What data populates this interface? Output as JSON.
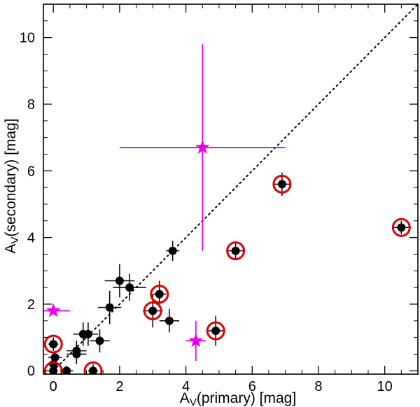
{
  "chart_data": {
    "type": "scatter",
    "title": "",
    "xlabel": {
      "prefix": "A",
      "sub": "V",
      "suffix": "(primary) [mag]"
    },
    "ylabel": {
      "prefix": "A",
      "sub": "V",
      "suffix": "(secondary) [mag]"
    },
    "xlim": [
      -0.3,
      11.0
    ],
    "ylim": [
      -0.1,
      11.0
    ],
    "xticks": [
      0,
      2,
      4,
      6,
      8,
      10
    ],
    "yticks": [
      0,
      2,
      4,
      6,
      8,
      10
    ],
    "xtick_labels": [
      "0",
      "2",
      "4",
      "6",
      "8",
      "10"
    ],
    "ytick_labels": [
      "0",
      "2",
      "4",
      "6",
      "8",
      "10"
    ],
    "reference_line": {
      "style": "dotted",
      "x": [
        0,
        11
      ],
      "y": [
        0,
        11
      ],
      "color": "#000000"
    },
    "series": [
      {
        "name": "black circles",
        "marker": "filled-circle",
        "color": "#000000",
        "points": [
          {
            "x": 0.0,
            "y": 0.0,
            "xerr": 0.1,
            "yerr": 0.15
          },
          {
            "x": 0.0,
            "y": 0.2,
            "xerr": 0.15,
            "yerr": 0.15
          },
          {
            "x": 0.05,
            "y": 0.4,
            "xerr": 0.2,
            "yerr": 0.2
          },
          {
            "x": 0.0,
            "y": 0.8,
            "xerr": 0.15,
            "yerr": 0.2
          },
          {
            "x": 0.4,
            "y": 0.0,
            "xerr": 0.2,
            "yerr": 0.15
          },
          {
            "x": 0.7,
            "y": 0.5,
            "xerr": 0.3,
            "yerr": 0.3
          },
          {
            "x": 0.7,
            "y": 0.6,
            "xerr": 0.3,
            "yerr": 0.3
          },
          {
            "x": 0.9,
            "y": 1.1,
            "xerr": 0.3,
            "yerr": 0.35
          },
          {
            "x": 1.05,
            "y": 1.1,
            "xerr": 0.3,
            "yerr": 0.35
          },
          {
            "x": 1.2,
            "y": 0.0,
            "xerr": 0.15,
            "yerr": 0.2
          },
          {
            "x": 1.4,
            "y": 0.9,
            "xerr": 0.3,
            "yerr": 0.35
          },
          {
            "x": 1.7,
            "y": 1.9,
            "xerr": 0.35,
            "yerr": 0.5
          },
          {
            "x": 2.0,
            "y": 2.7,
            "xerr": 0.45,
            "yerr": 0.5
          },
          {
            "x": 2.3,
            "y": 2.5,
            "xerr": 0.5,
            "yerr": 0.4
          },
          {
            "x": 3.0,
            "y": 1.8,
            "xerr": 0.3,
            "yerr": 0.5
          },
          {
            "x": 3.2,
            "y": 2.3,
            "xerr": 0.2,
            "yerr": 0.4
          },
          {
            "x": 3.5,
            "y": 1.5,
            "xerr": 0.3,
            "yerr": 0.35
          },
          {
            "x": 3.6,
            "y": 3.6,
            "xerr": 0.2,
            "yerr": 0.3
          },
          {
            "x": 4.9,
            "y": 1.2,
            "xerr": 0.25,
            "yerr": 0.45
          },
          {
            "x": 5.5,
            "y": 3.6,
            "xerr": 0.25,
            "yerr": 0.25
          },
          {
            "x": 6.9,
            "y": 5.6,
            "xerr": 0.25,
            "yerr": 0.35
          },
          {
            "x": 10.5,
            "y": 4.3,
            "xerr": 0.25,
            "yerr": 0.2
          }
        ]
      },
      {
        "name": "red rings",
        "marker": "open-circle",
        "color": "#e00000",
        "points": [
          {
            "x": 0.0,
            "y": 0.8
          },
          {
            "x": 0.0,
            "y": 0.0
          },
          {
            "x": 1.2,
            "y": 0.0
          },
          {
            "x": 3.0,
            "y": 1.8
          },
          {
            "x": 3.2,
            "y": 2.3
          },
          {
            "x": 4.9,
            "y": 1.2
          },
          {
            "x": 5.5,
            "y": 3.6
          },
          {
            "x": 6.9,
            "y": 5.6
          },
          {
            "x": 10.5,
            "y": 4.3
          }
        ]
      },
      {
        "name": "magenta stars",
        "marker": "star",
        "color": "#ee00ee",
        "points": [
          {
            "x": 4.5,
            "y": 6.7,
            "xlo": 2.0,
            "xhi": 7.0,
            "ylo": 3.6,
            "yhi": 9.8
          },
          {
            "x": 4.3,
            "y": 0.9,
            "xlo": 4.0,
            "xhi": 4.6,
            "ylo": 0.3,
            "yhi": 1.5
          },
          {
            "x": 0.0,
            "y": 1.8,
            "xlo": -0.3,
            "xhi": 0.5,
            "ylo": 1.7,
            "yhi": 1.9
          }
        ]
      }
    ]
  }
}
